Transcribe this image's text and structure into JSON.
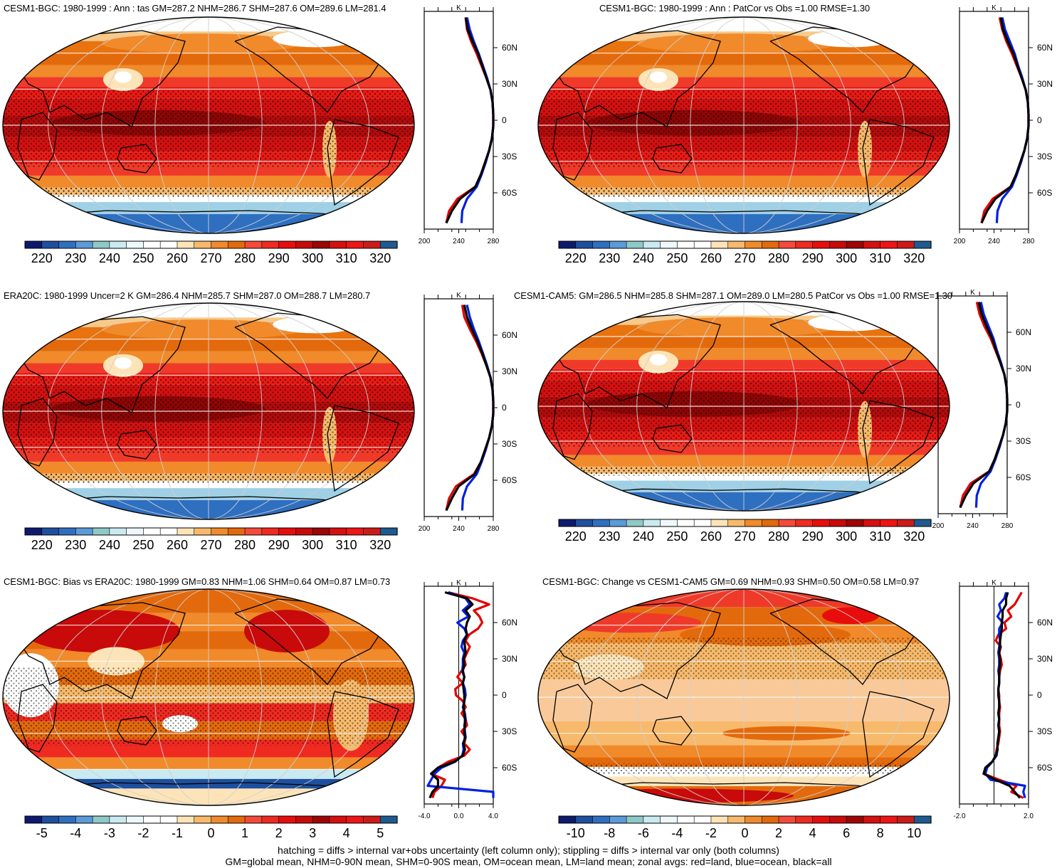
{
  "panels": [
    {
      "id": "p1",
      "title": "CESM1-BGC: 1980-1999 : Ann : tas GM=287.2 NHM=286.7 SHM=287.6 OM=289.6 LM=281.4",
      "map_type": "abs",
      "palette": "abs",
      "cbar_labels": [
        "220",
        "230",
        "240",
        "250",
        "260",
        "270",
        "280",
        "290",
        "300",
        "310",
        "320"
      ],
      "zonal_xticks": [
        "200",
        "240",
        "280"
      ],
      "zonal_unit": "K",
      "zonal_lat_labels": [
        "60N",
        "30N",
        "0",
        "30S",
        "60S"
      ]
    },
    {
      "id": "p2",
      "title": "CESM1-BGC: 1980-1999 : Ann : PatCor vs Obs =1.00 RMSE=1.30",
      "map_type": "abs",
      "palette": "abs",
      "cbar_labels": [
        "220",
        "230",
        "240",
        "250",
        "260",
        "270",
        "280",
        "290",
        "300",
        "310",
        "320"
      ],
      "zonal_xticks": [
        "200",
        "240",
        "280"
      ],
      "zonal_unit": "K",
      "zonal_lat_labels": [
        "60N",
        "30N",
        "0",
        "30S",
        "60S"
      ]
    },
    {
      "id": "p3",
      "title": "ERA20C: 1980-1999 Uncer=2 K GM=286.4 NHM=285.7 SHM=287.0 OM=288.7 LM=280.7",
      "map_type": "abs",
      "palette": "abs",
      "cbar_labels": [
        "220",
        "230",
        "240",
        "250",
        "260",
        "270",
        "280",
        "290",
        "300",
        "310",
        "320"
      ],
      "zonal_xticks": [
        "200",
        "240",
        "280"
      ],
      "zonal_unit": "K",
      "zonal_lat_labels": [
        "60N",
        "30N",
        "0",
        "30S",
        "60S"
      ]
    },
    {
      "id": "p4",
      "title": "CESM1-CAM5: GM=286.5 NHM=285.8 SHM=287.1 OM=289.0 LM=280.5 PatCor vs Obs =1.00 RMSE=1.30",
      "map_type": "abs",
      "palette": "abs",
      "cbar_labels": [
        "220",
        "230",
        "240",
        "250",
        "260",
        "270",
        "280",
        "290",
        "300",
        "310",
        "320"
      ],
      "zonal_xticks": [
        "200",
        "240",
        "280"
      ],
      "zonal_unit": "K",
      "zonal_lat_labels": [
        "60N",
        "30N",
        "0",
        "30S",
        "60S"
      ]
    },
    {
      "id": "p5",
      "title": "CESM1-BGC: Bias vs ERA20C: 1980-1999 GM=0.83 NHM=1.06 SHM=0.64 OM=0.87 LM=0.73",
      "map_type": "bias",
      "palette": "diff",
      "cbar_labels": [
        "-5",
        "-4",
        "-3",
        "-2",
        "-1",
        "0",
        "1",
        "2",
        "3",
        "4",
        "5"
      ],
      "zonal_xticks": [
        "-4.0",
        "0.0",
        "4.0"
      ],
      "zonal_unit": "K",
      "zonal_lat_labels": [
        "60N",
        "30N",
        "0",
        "30S",
        "60S"
      ]
    },
    {
      "id": "p6",
      "title": "CESM1-BGC: Change vs CESM1-CAM5 GM=0.69 NHM=0.93 SHM=0.50 OM=0.58 LM=0.97",
      "map_type": "change",
      "palette": "diff",
      "cbar_labels": [
        "-10",
        "-8",
        "-6",
        "-4",
        "-2",
        "0",
        "2",
        "4",
        "6",
        "8",
        "10"
      ],
      "zonal_xticks": [
        "-2.0",
        "2.0"
      ],
      "zonal_unit": "K",
      "zonal_lat_labels": [
        "60N",
        "30N",
        "0",
        "30S",
        "60S"
      ]
    }
  ],
  "palettes": {
    "abs": [
      "#0c1a6e",
      "#1f4f9e",
      "#2f6fc0",
      "#5b9bd9",
      "#8fc9c7",
      "#c9eaf0",
      "#eef7fa",
      "#ffffff",
      "#ffffff",
      "#fde4b8",
      "#f7b96b",
      "#f08a2a",
      "#e36a0c",
      "#f44a3a",
      "#ef2a21",
      "#e80d0d",
      "#c80a0a",
      "#9c0606",
      "#d41010",
      "#ee1515",
      "#cc1a1a",
      "#1f5a8e"
    ],
    "diff": [
      "#0c1a6e",
      "#1f4f9e",
      "#2f6fc0",
      "#5b9bd9",
      "#8fc9c7",
      "#c9eaf0",
      "#eef7fa",
      "#ffffff",
      "#ffffff",
      "#fde4b8",
      "#f7b96b",
      "#f08a2a",
      "#e36a0c",
      "#f44a3a",
      "#ef2a21",
      "#e80d0d",
      "#c80a0a",
      "#9c0606",
      "#d41010",
      "#ee1515",
      "#cc1a1a",
      "#1f5a8e"
    ]
  },
  "chart_data": [
    {
      "type": "line",
      "panel": "p1",
      "xlabel": "K",
      "xlim": [
        200,
        300
      ],
      "lat": [
        85,
        75,
        65,
        55,
        45,
        35,
        25,
        15,
        5,
        -5,
        -15,
        -25,
        -35,
        -45,
        -55,
        -65,
        -75,
        -85
      ],
      "series": [
        {
          "color": "#e00000",
          "values": [
            260,
            262,
            268,
            276,
            283,
            290,
            296,
            299,
            300,
            300,
            298,
            294,
            288,
            282,
            274,
            248,
            236,
            232
          ]
        },
        {
          "color": "#0020e0",
          "values": [
            262,
            266,
            272,
            279,
            285,
            291,
            296,
            299,
            300,
            300,
            298,
            294,
            289,
            283,
            276,
            262,
            255,
            254
          ]
        },
        {
          "color": "#000000",
          "values": [
            260,
            263,
            270,
            278,
            284,
            290,
            296,
            299,
            300,
            300,
            298,
            294,
            288,
            282,
            274,
            252,
            240,
            232
          ]
        }
      ]
    },
    {
      "type": "line",
      "panel": "p2",
      "xlabel": "K",
      "xlim": [
        200,
        300
      ],
      "lat": [
        85,
        75,
        65,
        55,
        45,
        35,
        25,
        15,
        5,
        -5,
        -15,
        -25,
        -35,
        -45,
        -55,
        -65,
        -75,
        -85
      ],
      "series": [
        {
          "color": "#e00000",
          "values": [
            258,
            262,
            268,
            276,
            283,
            290,
            296,
            299,
            300,
            300,
            298,
            294,
            288,
            282,
            274,
            248,
            236,
            232
          ]
        },
        {
          "color": "#0020e0",
          "values": [
            262,
            266,
            273,
            280,
            285,
            291,
            296,
            299,
            300,
            300,
            298,
            294,
            289,
            283,
            276,
            262,
            255,
            254
          ]
        },
        {
          "color": "#000000",
          "values": [
            260,
            263,
            270,
            278,
            284,
            290,
            296,
            299,
            300,
            300,
            298,
            294,
            288,
            282,
            274,
            252,
            240,
            232
          ]
        }
      ]
    },
    {
      "type": "line",
      "panel": "p3",
      "xlabel": "K",
      "xlim": [
        200,
        300
      ],
      "lat": [
        85,
        75,
        65,
        55,
        45,
        35,
        25,
        15,
        5,
        -5,
        -15,
        -25,
        -35,
        -45,
        -55,
        -65,
        -75,
        -85
      ],
      "series": [
        {
          "color": "#e00000",
          "values": [
            255,
            258,
            266,
            275,
            283,
            290,
            296,
            299,
            300,
            300,
            298,
            294,
            288,
            282,
            272,
            246,
            236,
            232
          ]
        },
        {
          "color": "#0020e0",
          "values": [
            262,
            266,
            272,
            279,
            285,
            291,
            296,
            299,
            300,
            300,
            298,
            294,
            289,
            283,
            276,
            262,
            256,
            255
          ]
        },
        {
          "color": "#000000",
          "values": [
            258,
            262,
            269,
            277,
            284,
            290,
            296,
            299,
            300,
            300,
            298,
            294,
            288,
            282,
            273,
            250,
            240,
            232
          ]
        }
      ]
    },
    {
      "type": "line",
      "panel": "p4",
      "xlabel": "K",
      "xlim": [
        200,
        300
      ],
      "lat": [
        85,
        75,
        65,
        55,
        45,
        35,
        25,
        15,
        5,
        -5,
        -15,
        -25,
        -35,
        -45,
        -55,
        -65,
        -75,
        -85
      ],
      "series": [
        {
          "color": "#e00000",
          "values": [
            256,
            260,
            267,
            276,
            283,
            290,
            296,
            299,
            300,
            300,
            298,
            294,
            288,
            282,
            274,
            247,
            236,
            232
          ]
        },
        {
          "color": "#0020e0",
          "values": [
            262,
            266,
            273,
            280,
            285,
            291,
            296,
            299,
            300,
            300,
            298,
            294,
            289,
            283,
            276,
            262,
            256,
            255
          ]
        },
        {
          "color": "#000000",
          "values": [
            259,
            263,
            270,
            278,
            284,
            290,
            296,
            299,
            300,
            300,
            298,
            294,
            288,
            282,
            274,
            251,
            240,
            232
          ]
        }
      ]
    },
    {
      "type": "line",
      "panel": "p5",
      "xlabel": "K",
      "xlim": [
        -5,
        5
      ],
      "lat": [
        85,
        80,
        75,
        70,
        65,
        60,
        55,
        50,
        45,
        40,
        35,
        30,
        25,
        20,
        15,
        10,
        5,
        0,
        -5,
        -10,
        -15,
        -20,
        -25,
        -30,
        -35,
        -40,
        -45,
        -50,
        -55,
        -60,
        -65,
        -70,
        -75,
        -80,
        -85
      ],
      "series": [
        {
          "color": "#e00000",
          "values": [
            -1.5,
            2.0,
            4.4,
            2.2,
            3.0,
            3.4,
            2.8,
            1.5,
            1.0,
            1.6,
            1.2,
            0.8,
            1.0,
            0.4,
            -0.2,
            0.6,
            -0.5,
            -0.4,
            0.6,
            1.0,
            0.4,
            1.0,
            1.2,
            0.4,
            1.0,
            0.8,
            1.6,
            0.8,
            -1.5,
            -3.0,
            -4.0,
            -2.0,
            -2.5,
            -3.5,
            -3.8
          ]
        },
        {
          "color": "#0020e0",
          "values": [
            -1.5,
            1.0,
            1.6,
            0.6,
            1.4,
            -0.2,
            0.8,
            1.2,
            0.6,
            0.4,
            0.8,
            0.6,
            0.6,
            0.5,
            0.8,
            0.6,
            0.9,
            1.0,
            0.8,
            0.6,
            0.9,
            1.0,
            0.8,
            0.9,
            1.0,
            0.6,
            0.7,
            0.5,
            -0.5,
            -2.5,
            -3.5,
            -4.0,
            -4.5,
            5.0,
            5.0
          ]
        },
        {
          "color": "#000000",
          "values": [
            -2.0,
            1.2,
            2.0,
            1.0,
            1.6,
            1.2,
            1.0,
            1.2,
            0.8,
            0.9,
            1.0,
            0.7,
            0.8,
            0.6,
            0.8,
            0.6,
            0.7,
            0.8,
            0.8,
            0.7,
            0.8,
            0.9,
            0.9,
            0.8,
            0.9,
            0.7,
            0.9,
            0.6,
            -0.6,
            -3.0,
            -4.0,
            -3.0,
            -3.0,
            -3.8,
            -4.2
          ]
        }
      ]
    },
    {
      "type": "line",
      "panel": "p6",
      "xlabel": "K",
      "xlim": [
        -4,
        4
      ],
      "lat": [
        85,
        80,
        75,
        70,
        65,
        60,
        55,
        50,
        45,
        40,
        35,
        30,
        25,
        20,
        15,
        10,
        5,
        0,
        -5,
        -10,
        -15,
        -20,
        -25,
        -30,
        -35,
        -40,
        -45,
        -50,
        -55,
        -60,
        -65,
        -70,
        -75,
        -80,
        -85
      ],
      "series": [
        {
          "color": "#e00000",
          "values": [
            3.2,
            2.8,
            2.4,
            1.6,
            2.0,
            1.2,
            1.4,
            0.5,
            0.2,
            0.8,
            0.6,
            0.8,
            0.9,
            0.7,
            0.6,
            0.6,
            0.5,
            0.6,
            0.6,
            0.7,
            0.6,
            0.6,
            0.6,
            0.7,
            0.6,
            0.5,
            0.3,
            0.2,
            -0.2,
            -0.8,
            -1.2,
            0.6,
            2.6,
            2.0,
            3.4
          ]
        },
        {
          "color": "#0020e0",
          "values": [
            1.4,
            1.2,
            0.6,
            0.8,
            0.4,
            1.0,
            0.6,
            0.6,
            0.7,
            0.6,
            0.5,
            0.6,
            0.6,
            0.5,
            0.6,
            0.6,
            0.5,
            0.5,
            0.6,
            0.6,
            0.5,
            0.6,
            0.5,
            0.6,
            0.5,
            0.4,
            0.4,
            0.3,
            -0.2,
            -0.8,
            -1.0,
            -0.4,
            3.6,
            3.4,
            3.6
          ]
        },
        {
          "color": "#000000",
          "values": [
            1.6,
            1.4,
            1.4,
            1.0,
            1.0,
            0.9,
            0.9,
            0.8,
            0.7,
            0.7,
            0.6,
            0.7,
            0.7,
            0.6,
            0.6,
            0.6,
            0.5,
            0.5,
            0.6,
            0.6,
            0.5,
            0.6,
            0.5,
            0.6,
            0.5,
            0.4,
            0.4,
            0.2,
            -0.2,
            -1.0,
            -1.2,
            0.2,
            1.8,
            2.4,
            3.0
          ]
        }
      ]
    }
  ],
  "footer": {
    "line1": "hatching = diffs > internal var+obs uncertainty (left column only); stippling = diffs > internal var only (both columns)",
    "line2": "GM=global mean, NHM=0-90N mean, SHM=0-90S mean, OM=ocean mean, LM=land mean; zonal avgs: red=land, blue=ocean, black=all"
  }
}
